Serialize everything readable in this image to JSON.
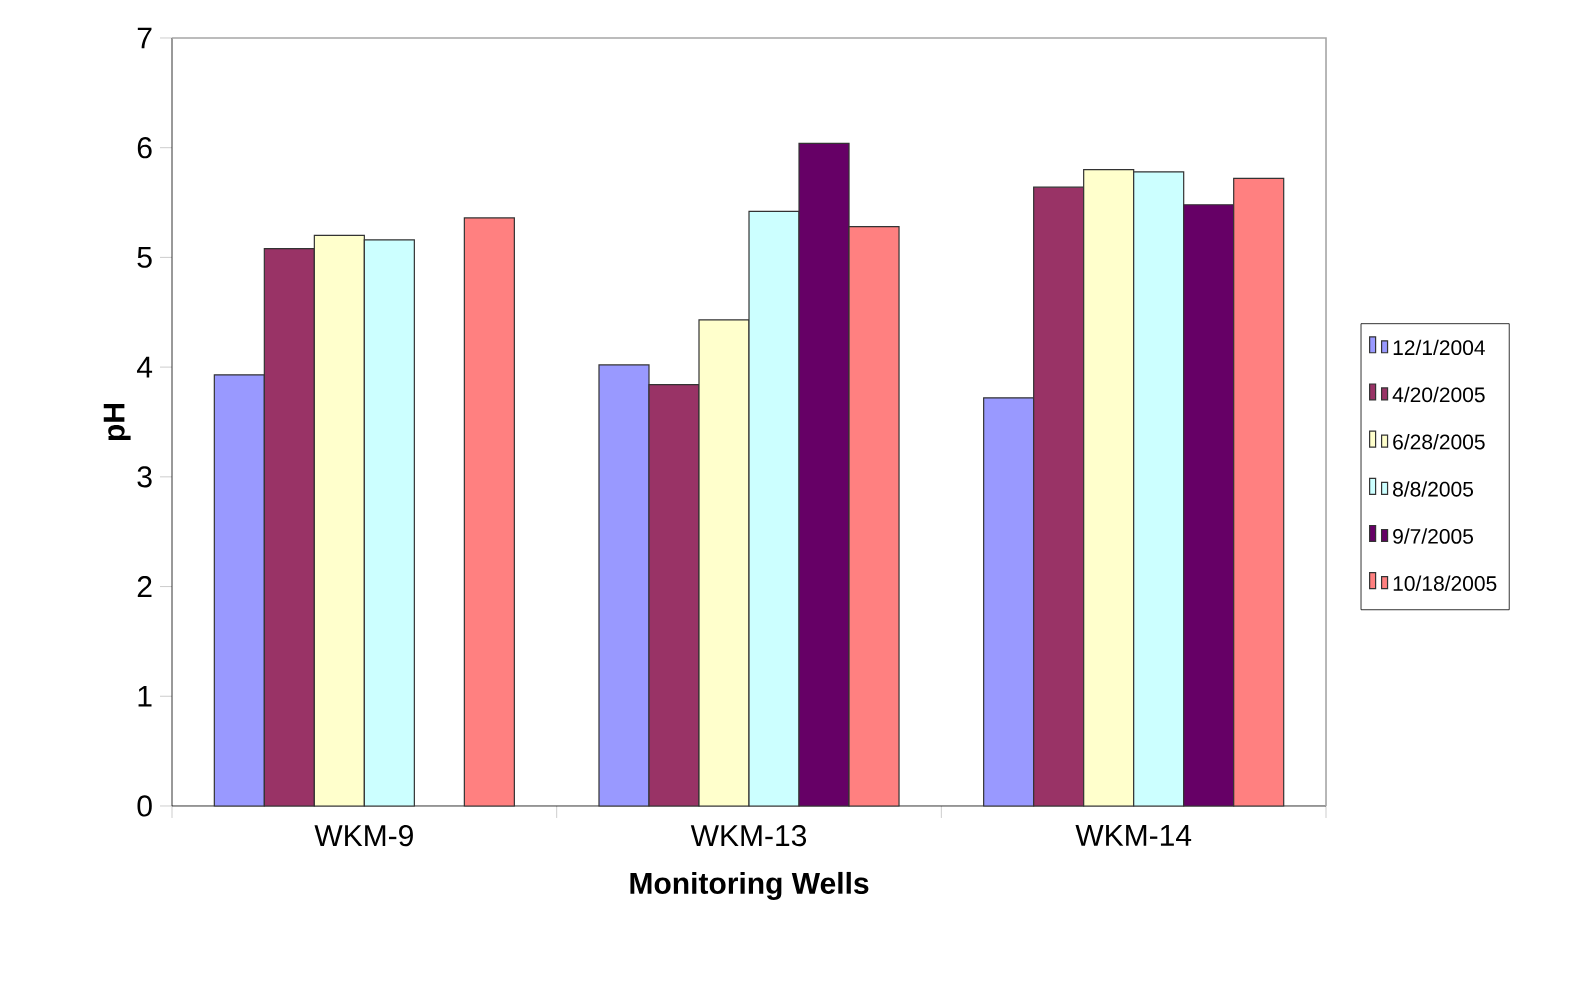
{
  "chart_data": {
    "type": "bar",
    "xlabel": "Monitoring Wells",
    "ylabel": "pH",
    "categories": [
      "WKM-9",
      "WKM-13",
      "WKM-14"
    ],
    "series": [
      {
        "name": "12/1/2004",
        "color": "#9999ff",
        "values": [
          3.93,
          4.02,
          3.72
        ]
      },
      {
        "name": "4/20/2005",
        "color": "#993366",
        "values": [
          5.08,
          3.84,
          5.64
        ]
      },
      {
        "name": "6/28/2005",
        "color": "#ffffcc",
        "values": [
          5.2,
          4.43,
          5.8
        ]
      },
      {
        "name": "8/8/2005",
        "color": "#ccffff",
        "values": [
          5.16,
          5.42,
          5.78
        ]
      },
      {
        "name": "9/7/2005",
        "color": "#660066",
        "values": [
          null,
          6.04,
          5.48
        ]
      },
      {
        "name": "10/18/2005",
        "color": "#ff8080",
        "values": [
          5.36,
          5.28,
          5.72
        ]
      }
    ],
    "ylim": [
      0,
      7
    ],
    "yticks": [
      0,
      1,
      2,
      3,
      4,
      5,
      6,
      7
    ],
    "grid": false,
    "legend": "right"
  }
}
